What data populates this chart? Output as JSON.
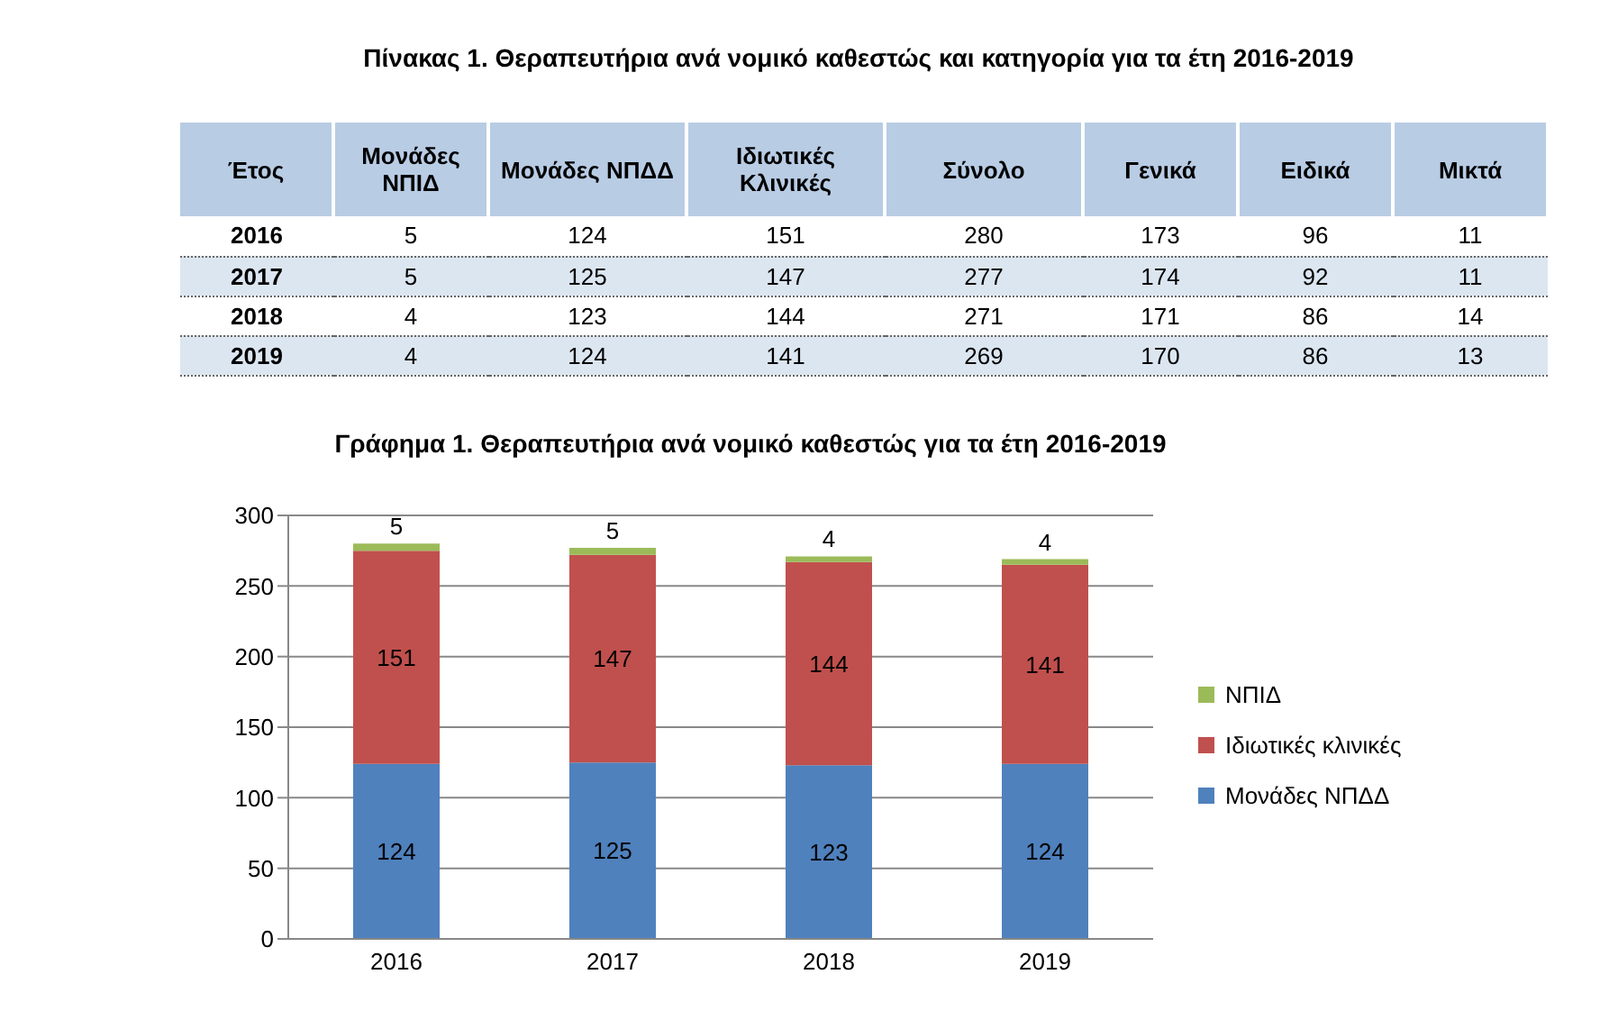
{
  "chart_data": [
    {
      "type": "heatmap",
      "title": "Πίνακας 1. Θεραπευτήρια ανά νομικό καθεστώς και κατηγορία για τα έτη 2016-2019",
      "ylabel": "Έτος",
      "categories": [
        "Μονάδες ΝΠΙΔ",
        "Μονάδες ΝΠΔΔ",
        "Ιδιωτικές Κλινικές",
        "Σύνολο",
        "Γενικά",
        "Ειδικά",
        "Μικτά"
      ],
      "y_categories": [
        "2016",
        "2017",
        "2018",
        "2019"
      ],
      "data_labels": true,
      "cells": [
        [
          5,
          124,
          151,
          280,
          173,
          96,
          11
        ],
        [
          5,
          125,
          147,
          277,
          174,
          92,
          11
        ],
        [
          4,
          123,
          144,
          271,
          171,
          86,
          14
        ],
        [
          4,
          124,
          141,
          269,
          170,
          86,
          13
        ]
      ]
    },
    {
      "type": "bar",
      "title": "Γράφημα 1. Θεραπευτήρια ανά νομικό καθεστώς για τα έτη 2016-2019",
      "categories": [
        "2016",
        "2017",
        "2018",
        "2019"
      ],
      "stacked": true,
      "data_labels": true,
      "grid": "y",
      "legend": "right",
      "ylim": [
        0,
        300
      ],
      "yticks": [
        0,
        50,
        100,
        150,
        200,
        250,
        300
      ],
      "series": [
        {
          "name": "Μονάδες ΝΠΔΔ",
          "color": "#4f81bd",
          "values": [
            124,
            125,
            123,
            124
          ]
        },
        {
          "name": "Ιδιωτικές κλινικές",
          "color": "#c0504d",
          "values": [
            151,
            147,
            144,
            141
          ]
        },
        {
          "name": "ΝΠΙΔ",
          "color": "#9bbb59",
          "values": [
            5,
            5,
            4,
            4
          ]
        }
      ]
    }
  ]
}
